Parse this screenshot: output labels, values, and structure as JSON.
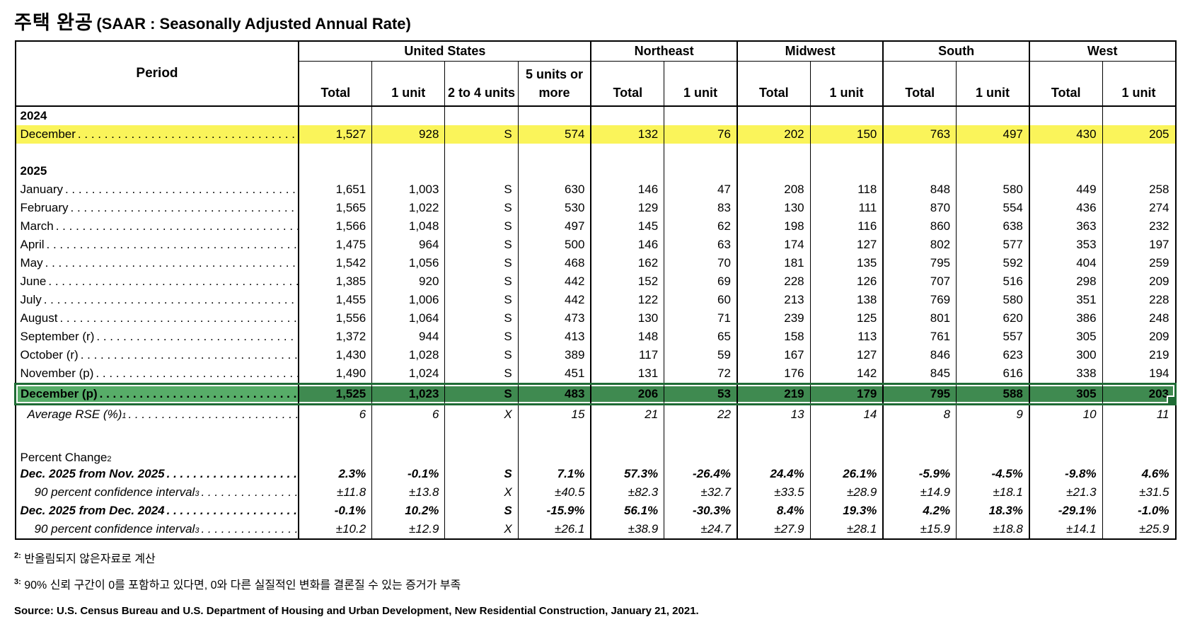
{
  "title": {
    "korean": "주택 완공",
    "english": "(SAAR : Seasonally Adjusted Annual Rate)"
  },
  "colors": {
    "highlight_yellow": "#FAF45A",
    "selection_fill_label": "#57AD68",
    "selection_fill_data": "#3F8A50",
    "selection_border": "#1F6B35"
  },
  "table": {
    "period_header": "Period",
    "groups": [
      {
        "label": "United States",
        "cols": [
          "Total",
          "1 unit",
          "2 to 4 units",
          "5 units or more"
        ]
      },
      {
        "label": "Northeast",
        "cols": [
          "Total",
          "1 unit"
        ]
      },
      {
        "label": "Midwest",
        "cols": [
          "Total",
          "1 unit"
        ]
      },
      {
        "label": "South",
        "cols": [
          "Total",
          "1 unit"
        ]
      },
      {
        "label": "West",
        "cols": [
          "Total",
          "1 unit"
        ]
      }
    ],
    "rows": [
      {
        "type": "year",
        "label": "2024"
      },
      {
        "type": "data",
        "label": "December",
        "highlight": "yellow",
        "values": [
          "1,527",
          "928",
          "S",
          "574",
          "132",
          "76",
          "202",
          "150",
          "763",
          "497",
          "430",
          "205"
        ]
      },
      {
        "type": "blank"
      },
      {
        "type": "year",
        "label": "2025"
      },
      {
        "type": "data",
        "label": "January",
        "values": [
          "1,651",
          "1,003",
          "S",
          "630",
          "146",
          "47",
          "208",
          "118",
          "848",
          "580",
          "449",
          "258"
        ]
      },
      {
        "type": "data",
        "label": "February",
        "values": [
          "1,565",
          "1,022",
          "S",
          "530",
          "129",
          "83",
          "130",
          "111",
          "870",
          "554",
          "436",
          "274"
        ]
      },
      {
        "type": "data",
        "label": "March",
        "values": [
          "1,566",
          "1,048",
          "S",
          "497",
          "145",
          "62",
          "198",
          "116",
          "860",
          "638",
          "363",
          "232"
        ]
      },
      {
        "type": "data",
        "label": "April",
        "values": [
          "1,475",
          "964",
          "S",
          "500",
          "146",
          "63",
          "174",
          "127",
          "802",
          "577",
          "353",
          "197"
        ]
      },
      {
        "type": "data",
        "label": "May",
        "values": [
          "1,542",
          "1,056",
          "S",
          "468",
          "162",
          "70",
          "181",
          "135",
          "795",
          "592",
          "404",
          "259"
        ]
      },
      {
        "type": "data",
        "label": "June",
        "values": [
          "1,385",
          "920",
          "S",
          "442",
          "152",
          "69",
          "228",
          "126",
          "707",
          "516",
          "298",
          "209"
        ]
      },
      {
        "type": "data",
        "label": "July",
        "values": [
          "1,455",
          "1,006",
          "S",
          "442",
          "122",
          "60",
          "213",
          "138",
          "769",
          "580",
          "351",
          "228"
        ]
      },
      {
        "type": "data",
        "label": "August",
        "values": [
          "1,556",
          "1,064",
          "S",
          "473",
          "130",
          "71",
          "239",
          "125",
          "801",
          "620",
          "386",
          "248"
        ]
      },
      {
        "type": "data",
        "label": "September (r)",
        "values": [
          "1,372",
          "944",
          "S",
          "413",
          "148",
          "65",
          "158",
          "113",
          "761",
          "557",
          "305",
          "209"
        ]
      },
      {
        "type": "data",
        "label": "October (r)",
        "values": [
          "1,430",
          "1,028",
          "S",
          "389",
          "117",
          "59",
          "167",
          "127",
          "846",
          "623",
          "300",
          "219"
        ]
      },
      {
        "type": "data",
        "label": "November (p)",
        "values": [
          "1,490",
          "1,024",
          "S",
          "451",
          "131",
          "72",
          "176",
          "142",
          "845",
          "616",
          "338",
          "194"
        ]
      },
      {
        "type": "data",
        "label": "December (p)",
        "highlight": "green",
        "style": "bold",
        "values": [
          "1,525",
          "1,023",
          "S",
          "483",
          "206",
          "53",
          "219",
          "179",
          "795",
          "588",
          "305",
          "203"
        ]
      },
      {
        "type": "data",
        "label": "Average RSE (%)",
        "sup": "1",
        "style": "italic",
        "indent": 1,
        "values": [
          "6",
          "6",
          "X",
          "15",
          "21",
          "22",
          "13",
          "14",
          "8",
          "9",
          "10",
          "11"
        ]
      },
      {
        "type": "blank"
      },
      {
        "type": "section",
        "label": "Percent Change",
        "sup": "2"
      },
      {
        "type": "data",
        "label": "Dec. 2025 from Nov. 2025",
        "style": "bolditalic",
        "values": [
          "2.3%",
          "-0.1%",
          "S",
          "7.1%",
          "57.3%",
          "-26.4%",
          "24.4%",
          "26.1%",
          "-5.9%",
          "-4.5%",
          "-9.8%",
          "4.6%"
        ]
      },
      {
        "type": "data",
        "label": "90 percent confidence interval",
        "sup": "3",
        "style": "italic",
        "indent": 2,
        "values": [
          "±11.8",
          "±13.8",
          "X",
          "±40.5",
          "±82.3",
          "±32.7",
          "±33.5",
          "±28.9",
          "±14.9",
          "±18.1",
          "±21.3",
          "±31.5"
        ]
      },
      {
        "type": "data",
        "label": "Dec. 2025 from Dec. 2024",
        "style": "bolditalic",
        "values": [
          "-0.1%",
          "10.2%",
          "S",
          "-15.9%",
          "56.1%",
          "-30.3%",
          "8.4%",
          "19.3%",
          "4.2%",
          "18.3%",
          "-29.1%",
          "-1.0%"
        ]
      },
      {
        "type": "data",
        "label": "90 percent confidence interval",
        "sup": "3",
        "style": "italic",
        "indent": 2,
        "values": [
          "±10.2",
          "±12.9",
          "X",
          "±26.1",
          "±38.9",
          "±24.7",
          "±27.9",
          "±28.1",
          "±15.9",
          "±18.8",
          "±14.1",
          "±25.9"
        ]
      }
    ]
  },
  "footnotes": [
    {
      "marker": "2:",
      "text": "반올림되지 않은자료로 계산"
    },
    {
      "marker": "3:",
      "text": "90% 신뢰 구간이 0를 포함하고 있다면, 0와 다른 실질적인 변화를 결론질 수 있는 증거가 부족"
    }
  ],
  "source": "Source: U.S. Census Bureau and U.S. Department of Housing and Urban Development, New Residential Construction, January 21, 2021."
}
